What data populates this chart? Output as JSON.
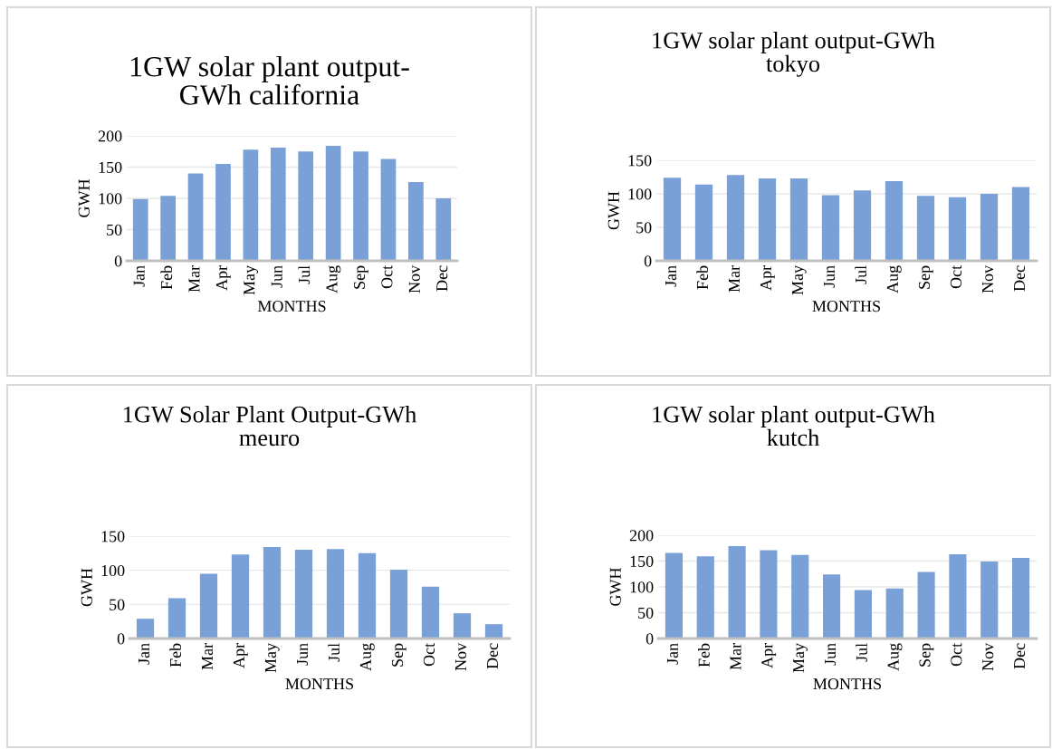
{
  "chart_data": [
    {
      "type": "bar",
      "title": "1GW solar plant output-\nGWh california",
      "xlabel": "MONTHS",
      "ylabel": "GWH",
      "categories": [
        "Jan",
        "Feb",
        "Mar",
        "Apr",
        "May",
        "Jun",
        "Jul",
        "Aug",
        "Sep",
        "Oct",
        "Nov",
        "Dec"
      ],
      "values": [
        99,
        104,
        140,
        155,
        178,
        181,
        175,
        184,
        175,
        163,
        126,
        100
      ],
      "color": "#7aa0d8",
      "ylim": [
        0,
        200
      ],
      "yticks": [
        0,
        50,
        100,
        150,
        200
      ],
      "grid": "y"
    },
    {
      "type": "bar",
      "title": "1GW solar plant output-GWh\ntokyo",
      "xlabel": "MONTHS",
      "ylabel": "GWH",
      "categories": [
        "Jan",
        "Feb",
        "Mar",
        "Apr",
        "May",
        "Jun",
        "Jul",
        "Aug",
        "Sep",
        "Oct",
        "Nov",
        "Dec"
      ],
      "values": [
        124,
        114,
        128,
        123,
        123,
        98,
        105,
        119,
        97,
        95,
        100,
        110
      ],
      "color": "#7aa0d8",
      "ylim": [
        0,
        150
      ],
      "yticks": [
        0,
        50,
        100,
        150
      ],
      "grid": "y"
    },
    {
      "type": "bar",
      "title": "1GW Solar Plant Output-GWh\nmeuro",
      "xlabel": "MONTHS",
      "ylabel": "GWH",
      "categories": [
        "Jan",
        "Feb",
        "Mar",
        "Apr",
        "May",
        "Jun",
        "Jul",
        "Aug",
        "Sep",
        "Oct",
        "Nov",
        "Dec"
      ],
      "values": [
        29,
        59,
        95,
        123,
        134,
        130,
        131,
        125,
        101,
        76,
        37,
        21
      ],
      "color": "#7aa0d8",
      "ylim": [
        0,
        150
      ],
      "yticks": [
        0,
        50,
        100,
        150
      ],
      "grid": "y"
    },
    {
      "type": "bar",
      "title": "1GW solar plant output-GWh\nkutch",
      "xlabel": "MONTHS",
      "ylabel": "GWH",
      "categories": [
        "Jan",
        "Feb",
        "Mar",
        "Apr",
        "May",
        "Jun",
        "Jul",
        "Aug",
        "Sep",
        "Oct",
        "Nov",
        "Dec"
      ],
      "values": [
        166,
        159,
        179,
        171,
        162,
        124,
        94,
        97,
        129,
        163,
        149,
        156
      ],
      "color": "#7aa0d8",
      "ylim": [
        0,
        200
      ],
      "yticks": [
        0,
        50,
        100,
        150,
        200
      ],
      "grid": "y"
    }
  ]
}
